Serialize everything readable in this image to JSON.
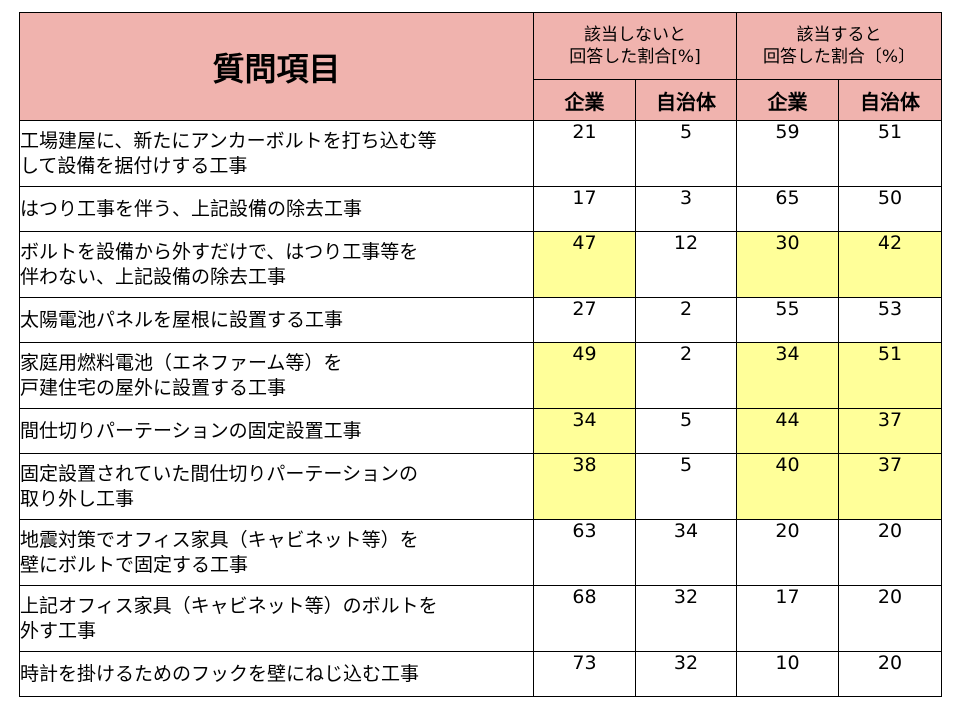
{
  "header": {
    "question_col": "質問項目",
    "group_not_applicable": "該当しないと\n回答した割合[%]",
    "group_applicable": "該当すると\n回答した割合〔%〕",
    "sub_company": "企業",
    "sub_municipality": "自治体"
  },
  "highlight_color": "#ffff99",
  "header_color": "#f0b3ae",
  "rows": [
    {
      "q": "工場建屋に、新たにアンカーボルトを打ち込む等\nして設備を据付けする工事",
      "na_company": "21",
      "na_muni": "5",
      "a_company": "59",
      "a_muni": "51",
      "hl": [
        false,
        false,
        false,
        false
      ]
    },
    {
      "q": "はつり工事を伴う、上記設備の除去工事",
      "na_company": "17",
      "na_muni": "3",
      "a_company": "65",
      "a_muni": "50",
      "hl": [
        false,
        false,
        false,
        false
      ]
    },
    {
      "q": "ボルトを設備から外すだけで、はつり工事等を\n伴わない、上記設備の除去工事",
      "na_company": "47",
      "na_muni": "12",
      "a_company": "30",
      "a_muni": "42",
      "hl": [
        true,
        false,
        true,
        true
      ]
    },
    {
      "q": "太陽電池パネルを屋根に設置する工事",
      "na_company": "27",
      "na_muni": "2",
      "a_company": "55",
      "a_muni": "53",
      "hl": [
        false,
        false,
        false,
        false
      ]
    },
    {
      "q": "家庭用燃料電池（エネファーム等）を\n戸建住宅の屋外に設置する工事",
      "na_company": "49",
      "na_muni": "2",
      "a_company": "34",
      "a_muni": "51",
      "hl": [
        true,
        false,
        true,
        true
      ]
    },
    {
      "q": "間仕切りパーテーションの固定設置工事",
      "na_company": "34",
      "na_muni": "5",
      "a_company": "44",
      "a_muni": "37",
      "hl": [
        true,
        false,
        true,
        true
      ]
    },
    {
      "q": "固定設置されていた間仕切りパーテーションの\n取り外し工事",
      "na_company": "38",
      "na_muni": "5",
      "a_company": "40",
      "a_muni": "37",
      "hl": [
        true,
        false,
        true,
        true
      ]
    },
    {
      "q": "地震対策でオフィス家具（キャビネット等）を\n壁にボルトで固定する工事",
      "na_company": "63",
      "na_muni": "34",
      "a_company": "20",
      "a_muni": "20",
      "hl": [
        false,
        false,
        false,
        false
      ]
    },
    {
      "q": "上記オフィス家具（キャビネット等）のボルトを\n外す工事",
      "na_company": "68",
      "na_muni": "32",
      "a_company": "17",
      "a_muni": "20",
      "hl": [
        false,
        false,
        false,
        false
      ]
    },
    {
      "q": "時計を掛けるためのフックを壁にねじ込む工事",
      "na_company": "73",
      "na_muni": "32",
      "a_company": "10",
      "a_muni": "20",
      "hl": [
        false,
        false,
        false,
        false
      ]
    }
  ]
}
